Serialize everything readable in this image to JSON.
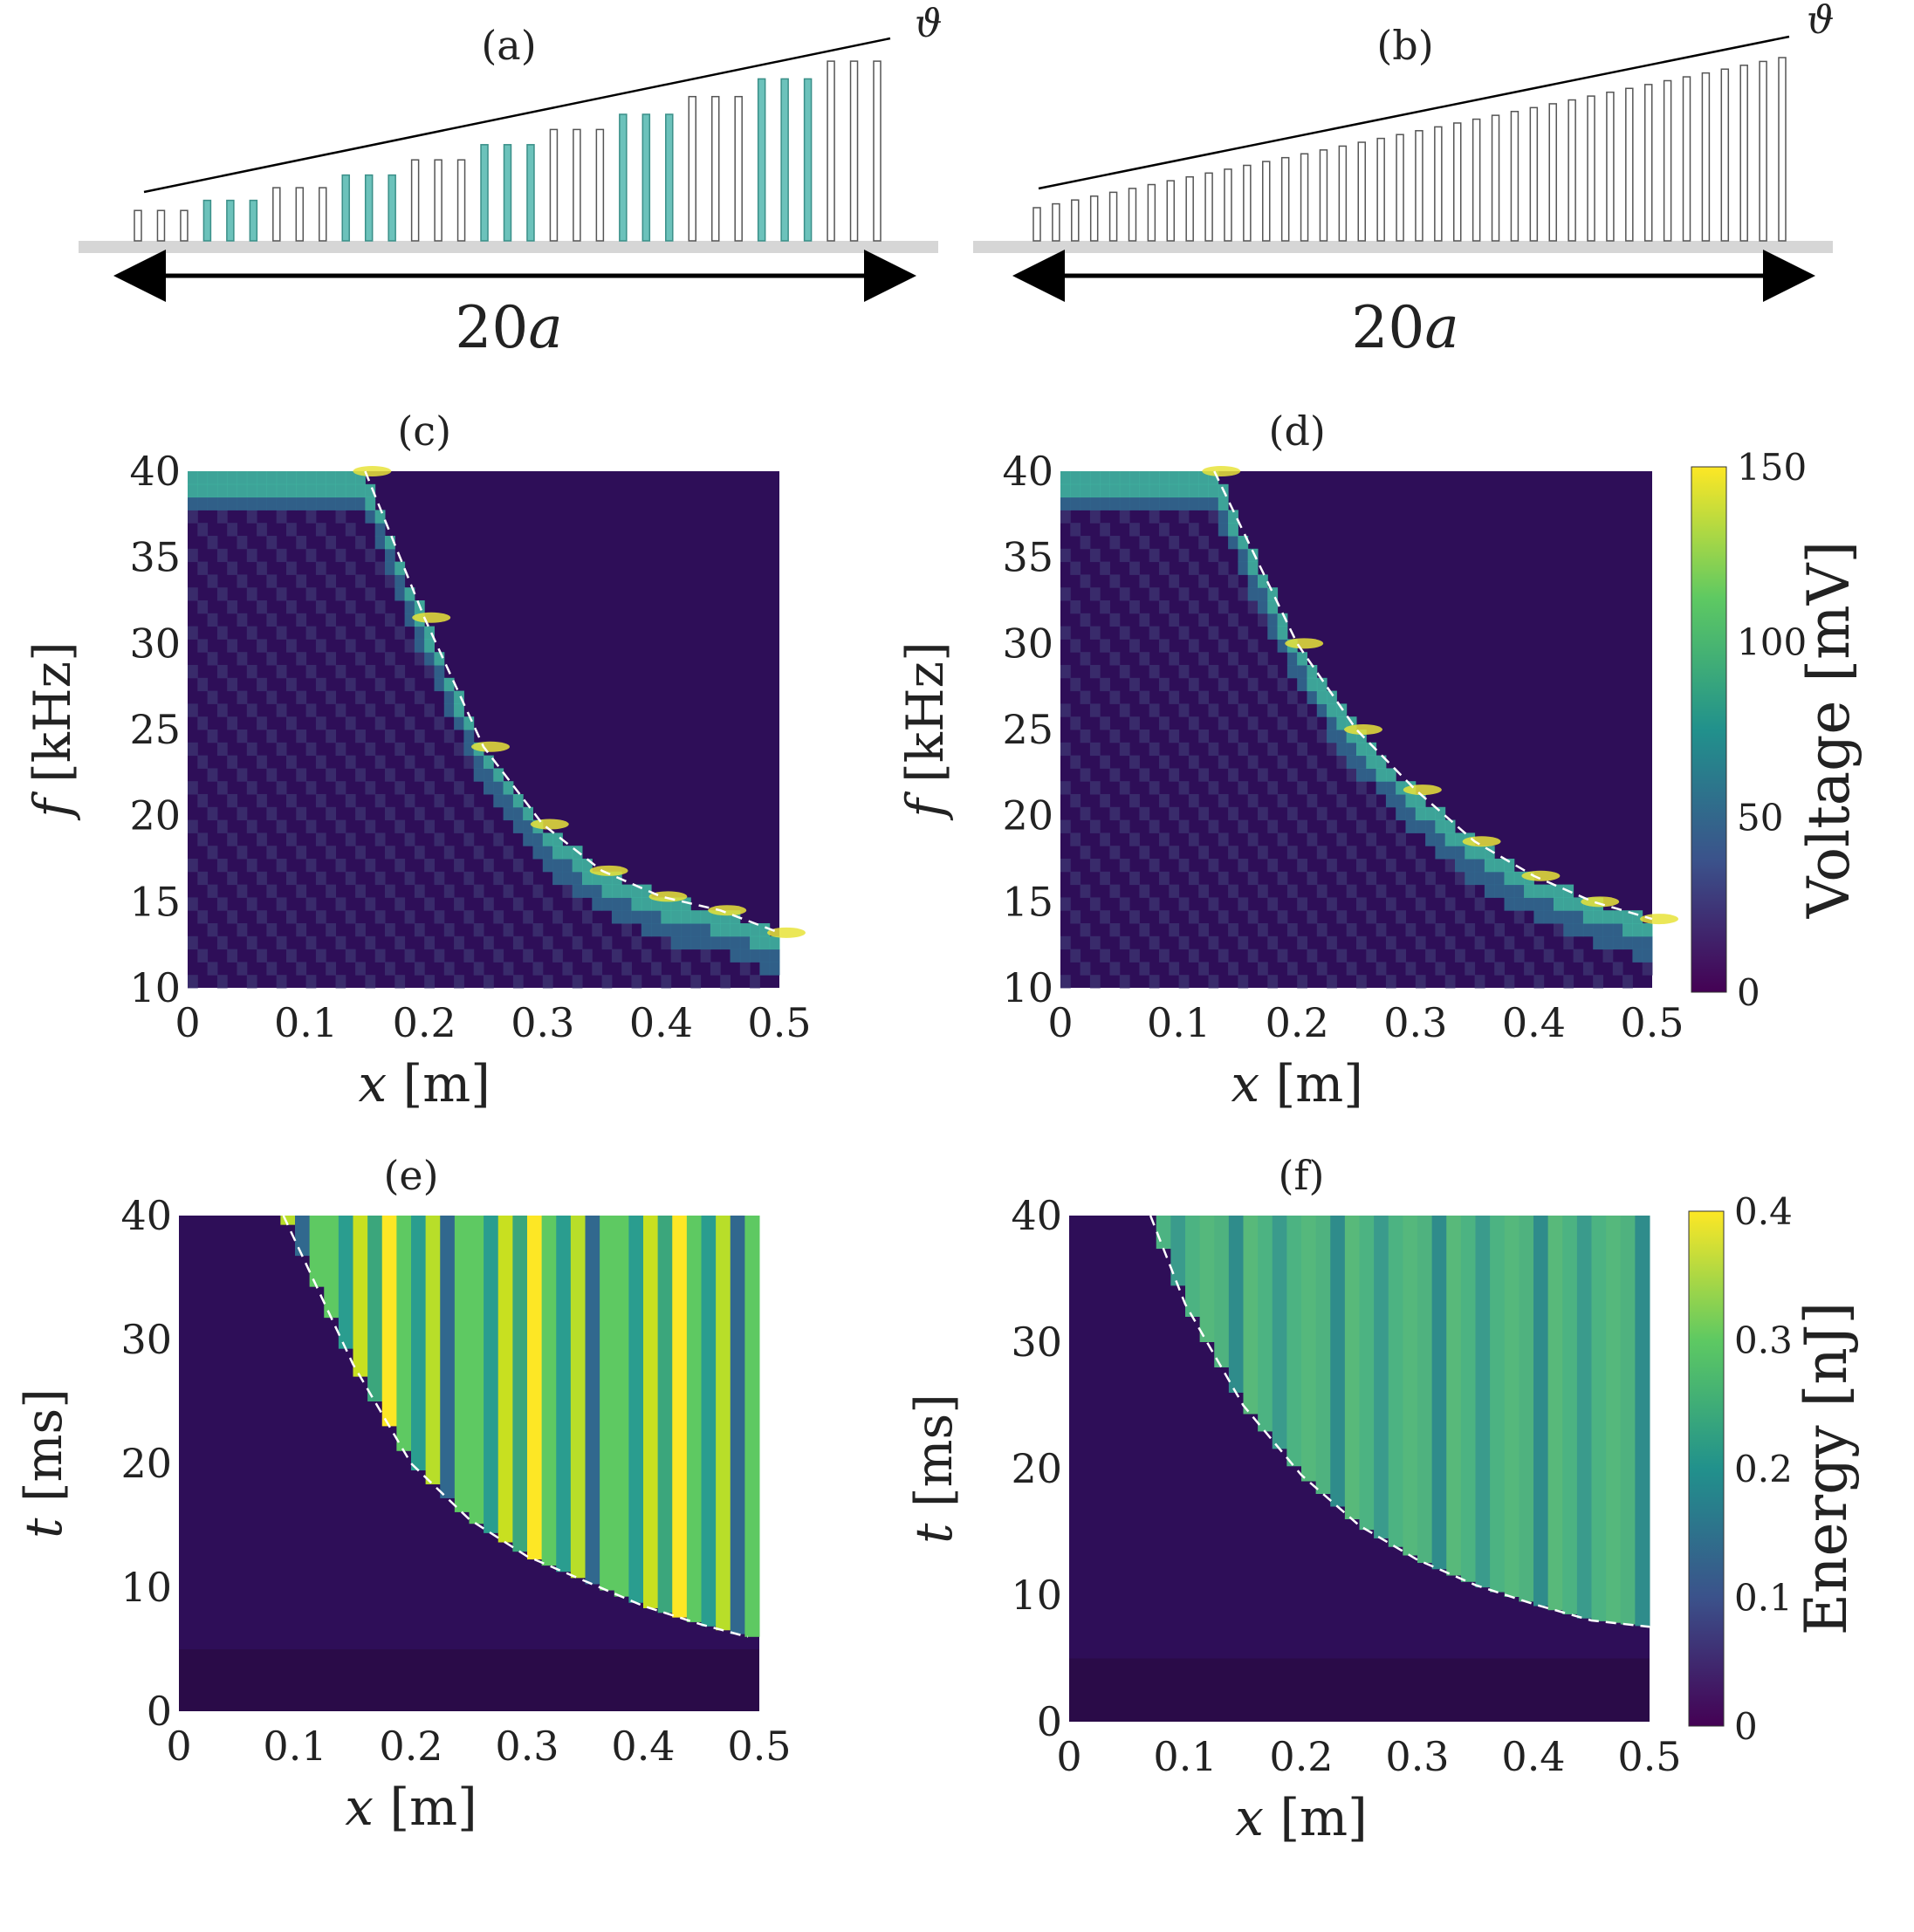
{
  "panels": {
    "a": {
      "label": "(a)",
      "theta": "ϑ",
      "length_label": "20",
      "length_var": "a",
      "bar_heights": [
        0.12,
        0.12,
        0.12,
        0.16,
        0.16,
        0.16,
        0.21,
        0.21,
        0.21,
        0.26,
        0.26,
        0.26,
        0.32,
        0.32,
        0.32,
        0.38,
        0.38,
        0.38,
        0.44,
        0.44,
        0.44,
        0.5,
        0.5,
        0.5,
        0.57,
        0.57,
        0.57,
        0.64,
        0.64,
        0.64,
        0.71,
        0.71,
        0.71
      ],
      "bar_colors": [
        "#777777",
        "#777777",
        "#777777",
        "#6cc2bb",
        "#6cc2bb",
        "#6cc2bb",
        "#777777",
        "#777777",
        "#777777",
        "#6cc2bb",
        "#6cc2bb",
        "#6cc2bb",
        "#777777",
        "#777777",
        "#777777",
        "#6cc2bb",
        "#6cc2bb",
        "#6cc2bb",
        "#777777",
        "#777777",
        "#777777",
        "#6cc2bb",
        "#6cc2bb",
        "#6cc2bb",
        "#777777",
        "#777777",
        "#777777",
        "#6cc2bb",
        "#6cc2bb",
        "#6cc2bb",
        "#777777",
        "#777777",
        "#777777"
      ]
    },
    "b": {
      "label": "(b)",
      "theta": "ϑ",
      "length_label": "20",
      "length_var": "a",
      "bar_count": 40
    }
  },
  "chart_data": [
    {
      "id": "c",
      "type": "heatmap",
      "title": "(c)",
      "xlabel_var": "x",
      "xlabel_unit": "[m]",
      "ylabel_var": "f",
      "ylabel_unit": "[kHz]",
      "xlim": [
        0,
        0.5
      ],
      "ylim": [
        10,
        40
      ],
      "xticks": [
        "0",
        "0.1",
        "0.2",
        "0.3",
        "0.4",
        "0.5"
      ],
      "yticks": [
        "10",
        "15",
        "20",
        "25",
        "30",
        "35",
        "40"
      ],
      "curve": {
        "x": [
          0.15,
          0.2,
          0.25,
          0.3,
          0.35,
          0.4,
          0.45,
          0.5
        ],
        "y": [
          40,
          31.5,
          24,
          19.5,
          16.8,
          15.3,
          14.5,
          13.2
        ]
      }
    },
    {
      "id": "d",
      "type": "heatmap",
      "title": "(d)",
      "xlabel_var": "x",
      "xlabel_unit": "[m]",
      "ylabel_var": "f",
      "ylabel_unit": "[kHz]",
      "xlim": [
        0,
        0.5
      ],
      "ylim": [
        10,
        40
      ],
      "xticks": [
        "0",
        "0.1",
        "0.2",
        "0.3",
        "0.4",
        "0.5"
      ],
      "yticks": [
        "10",
        "15",
        "20",
        "25",
        "30",
        "35",
        "40"
      ],
      "curve": {
        "x": [
          0.13,
          0.2,
          0.25,
          0.3,
          0.35,
          0.4,
          0.45,
          0.5
        ],
        "y": [
          40,
          30,
          25,
          21.5,
          18.5,
          16.5,
          15,
          14
        ]
      },
      "colorbar": {
        "label": "Voltage [mV]",
        "range": [
          0,
          150
        ],
        "ticks": [
          "0",
          "50",
          "100",
          "150"
        ]
      }
    },
    {
      "id": "e",
      "type": "heatmap",
      "title": "(e)",
      "xlabel_var": "x",
      "xlabel_unit": "[m]",
      "ylabel_var": "t",
      "ylabel_unit": "[ms]",
      "xlim": [
        0,
        0.5
      ],
      "ylim": [
        0,
        40
      ],
      "xticks": [
        "0",
        "0.1",
        "0.2",
        "0.3",
        "0.4",
        "0.5"
      ],
      "yticks": [
        "0",
        "10",
        "20",
        "30",
        "40"
      ],
      "curve": {
        "x": [
          0.09,
          0.15,
          0.2,
          0.25,
          0.3,
          0.35,
          0.4,
          0.45,
          0.49
        ],
        "y": [
          40,
          28,
          20,
          15.5,
          12.5,
          10.5,
          8.5,
          7,
          6
        ]
      }
    },
    {
      "id": "f",
      "type": "heatmap",
      "title": "(f)",
      "xlabel_var": "x",
      "xlabel_unit": "[m]",
      "ylabel_var": "t",
      "ylabel_unit": "[ms]",
      "xlim": [
        0,
        0.5
      ],
      "ylim": [
        0,
        40
      ],
      "xticks": [
        "0",
        "0.1",
        "0.2",
        "0.3",
        "0.4",
        "0.5"
      ],
      "yticks": [
        "0",
        "10",
        "20",
        "30",
        "40"
      ],
      "curve": {
        "x": [
          0.07,
          0.1,
          0.15,
          0.2,
          0.25,
          0.3,
          0.35,
          0.4,
          0.45,
          0.5
        ],
        "y": [
          40,
          33,
          25,
          19.5,
          15.5,
          12.8,
          10.8,
          9.3,
          8,
          7.5
        ]
      },
      "colorbar": {
        "label": "Energy [nJ]",
        "range": [
          0,
          0.4
        ],
        "ticks": [
          "0",
          "0.1",
          "0.2",
          "0.3",
          "0.4"
        ]
      }
    }
  ],
  "colors": {
    "bg": "#2b0a4d",
    "low": "#3b2f7a",
    "mid": "#2a8c8c",
    "high": "#f5e52a",
    "curve": "#ffffff",
    "bar_gray": "#777777",
    "bar_teal": "#6cc2bb"
  }
}
